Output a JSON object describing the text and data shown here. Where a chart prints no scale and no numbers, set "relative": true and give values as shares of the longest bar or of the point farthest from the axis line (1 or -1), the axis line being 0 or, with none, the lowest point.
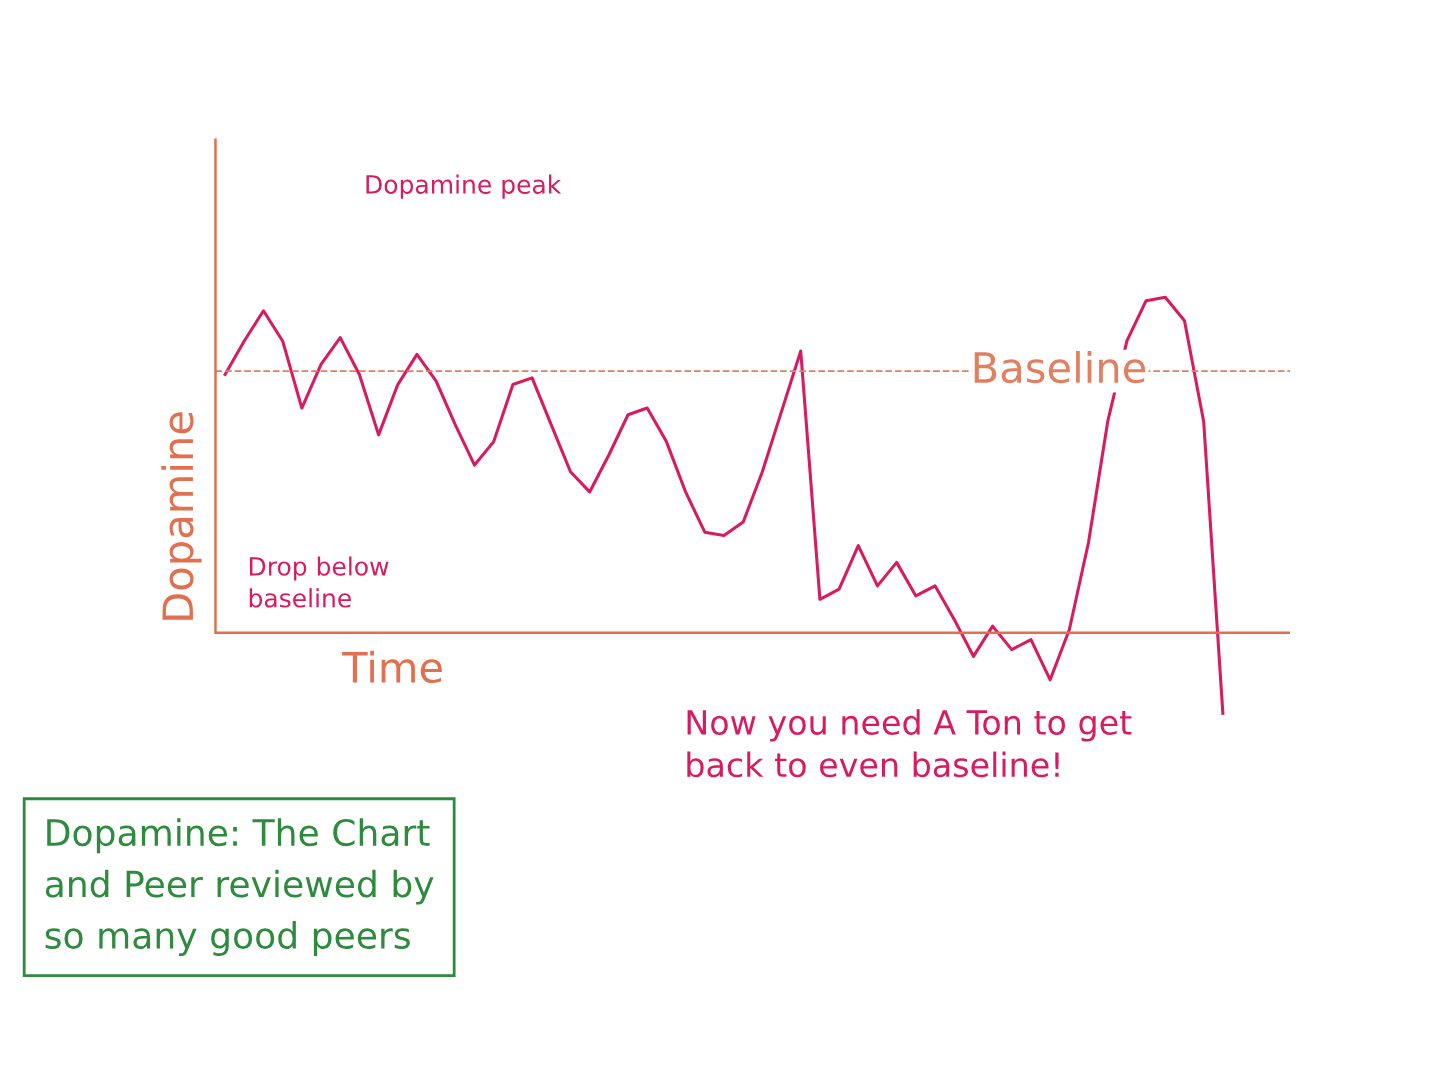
{
  "chart_data": {
    "type": "line",
    "relative": true,
    "xlabel": "Time",
    "ylabel": "Dopamine",
    "categories": [
      null,
      null,
      null,
      null,
      null,
      null,
      null,
      null,
      null,
      null,
      null,
      null,
      null,
      null,
      null,
      null,
      null,
      null,
      null,
      null,
      null,
      null,
      null,
      null,
      null,
      null,
      null,
      null,
      null,
      null,
      null,
      null,
      null,
      null,
      null,
      null,
      null,
      null,
      null,
      null,
      null,
      null,
      null,
      null,
      null,
      null,
      null,
      null,
      null,
      null,
      null,
      null,
      null
    ],
    "series": [
      {
        "color": "#d81b60",
        "values": [
          0.77,
          0.87,
          0.96,
          0.87,
          0.67,
          0.8,
          0.88,
          0.77,
          0.59,
          0.74,
          0.83,
          0.75,
          0.62,
          0.5,
          0.57,
          0.74,
          0.76,
          0.62,
          0.48,
          0.42,
          0.53,
          0.65,
          0.67,
          0.57,
          0.42,
          0.3,
          0.29,
          0.33,
          0.48,
          0.66,
          0.84,
          0.1,
          0.13,
          0.26,
          0.14,
          0.21,
          0.11,
          0.14,
          0.04,
          -0.07,
          0.02,
          -0.05,
          -0.02,
          -0.14,
          0.01,
          0.27,
          0.63,
          0.87,
          0.99,
          1,
          0.93,
          0.63,
          -0.24
        ]
      }
    ],
    "ref_lines": [
      {
        "axis": "y",
        "value": 0,
        "color": "#e07050",
        "line_style": "solid"
      },
      {
        "axis": "y",
        "value": 0.78,
        "label": "Baseline",
        "color": "#e08060",
        "line_style": "dashed"
      }
    ],
    "annotations": [
      "Dopamine peak",
      "Drop below baseline",
      "Now you need A Ton to get back to even baseline!",
      "Dopamine: The Chart\nand Peer reviewed by\nso many good peers"
    ],
    "legend": false,
    "marker": "none",
    "line_style": "solid"
  }
}
